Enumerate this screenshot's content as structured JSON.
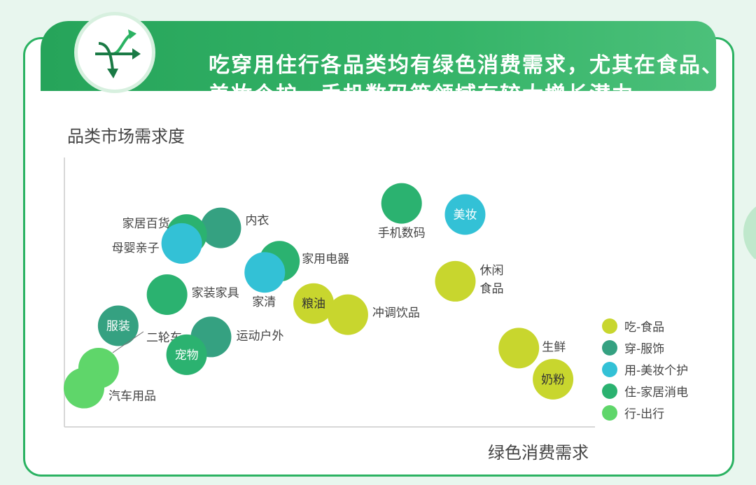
{
  "header": {
    "title": "吃穿用住行各品类均有绿色消费需求，尤其在食品、美妆个护、手机数码等领域有较大增长潜力",
    "logo_icon": "arrows-icon"
  },
  "chart_data": {
    "type": "scatter",
    "ylabel": "品类市场需求度",
    "xlabel": "绿色消费需求",
    "series": [
      {
        "name": "吃-食品",
        "color": "#c8d62e"
      },
      {
        "name": "穿-服饰",
        "color": "#35a181"
      },
      {
        "name": "用-美妆个护",
        "color": "#33c1d6"
      },
      {
        "name": "住-家居消电",
        "color": "#2bb270"
      },
      {
        "name": "行-出行",
        "color": "#5fd66a"
      }
    ],
    "points": [
      {
        "label": "内衣",
        "series": "穿-服饰",
        "x": 0.28,
        "y": 0.8
      },
      {
        "label": "家居百货",
        "series": "住-家居消电",
        "x": 0.21,
        "y": 0.77
      },
      {
        "label": "母婴亲子",
        "series": "用-美妆个护",
        "x": 0.2,
        "y": 0.73
      },
      {
        "label": "家用电器",
        "series": "住-家居消电",
        "x": 0.4,
        "y": 0.65
      },
      {
        "label": "家清",
        "series": "用-美妆个护",
        "x": 0.37,
        "y": 0.6
      },
      {
        "label": "手机数码",
        "series": "住-家居消电",
        "x": 0.65,
        "y": 0.91
      },
      {
        "label": "美妆",
        "series": "用-美妆个护",
        "x": 0.78,
        "y": 0.86
      },
      {
        "label": "家装家具",
        "series": "住-家居消电",
        "x": 0.17,
        "y": 0.5
      },
      {
        "label": "休闲食品",
        "series": "吃-食品",
        "x": 0.76,
        "y": 0.56
      },
      {
        "label": "粮油",
        "series": "吃-食品",
        "x": 0.47,
        "y": 0.46
      },
      {
        "label": "冲调饮品",
        "series": "吃-食品",
        "x": 0.54,
        "y": 0.41
      },
      {
        "label": "服装",
        "series": "穿-服饰",
        "x": 0.07,
        "y": 0.36
      },
      {
        "label": "二轮车",
        "series": "行-出行",
        "x": 0.03,
        "y": 0.17
      },
      {
        "label": "运动户外",
        "series": "穿-服饰",
        "x": 0.26,
        "y": 0.31
      },
      {
        "label": "宠物",
        "series": "住-家居消电",
        "x": 0.21,
        "y": 0.23
      },
      {
        "label": "汽车用品",
        "series": "行-出行",
        "x": 0.0,
        "y": 0.08
      },
      {
        "label": "生鲜",
        "series": "吃-食品",
        "x": 0.89,
        "y": 0.26
      },
      {
        "label": "奶粉",
        "series": "吃-食品",
        "x": 0.96,
        "y": 0.12
      }
    ]
  }
}
